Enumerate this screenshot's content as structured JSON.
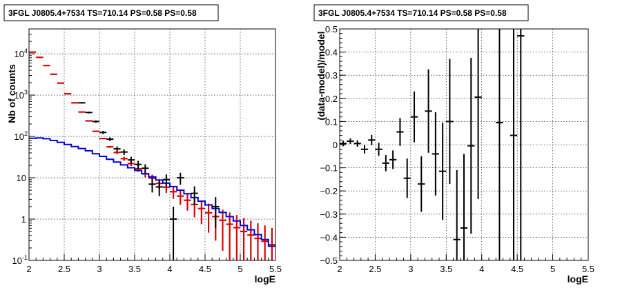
{
  "chart_data": [
    {
      "type": "line",
      "title": "3FGL J0805.4+7534 TS=710.14 PS=0.58 PS=0.58",
      "xlabel": "logE",
      "ylabel": "Nb of counts",
      "xlim": [
        2,
        5.5
      ],
      "ylim": [
        0.1,
        40000
      ],
      "yscale": "log",
      "grid": true,
      "xticks": [
        "2",
        "2.5",
        "3",
        "3.5",
        "4",
        "4.5",
        "5",
        "5.5"
      ],
      "yticks": [
        {
          "value": 0.1,
          "base": "10",
          "exp": "-1"
        },
        {
          "value": 1,
          "base": "1",
          "exp": ""
        },
        {
          "value": 10,
          "base": "10",
          "exp": ""
        },
        {
          "value": 100,
          "base": "10",
          "exp": "2"
        },
        {
          "value": 1000,
          "base": "10",
          "exp": "3"
        },
        {
          "value": 10000,
          "base": "10",
          "exp": "4"
        }
      ],
      "colors": {
        "data": "#000000",
        "model": "#dd0000",
        "source": "#0000dd"
      },
      "series": [
        {
          "kind": "model-bins",
          "x": [
            2.0,
            2.1,
            2.2,
            2.3,
            2.4,
            2.5,
            2.6,
            2.7,
            2.8,
            2.9,
            3.0,
            3.1,
            3.2,
            3.3,
            3.4,
            3.5,
            3.6,
            3.7,
            3.8,
            3.9,
            4.0,
            4.1,
            4.2,
            4.3,
            4.4,
            4.5,
            4.6,
            4.7,
            4.8,
            4.9,
            5.0,
            5.1,
            5.2,
            5.3,
            5.4
          ],
          "y": [
            11000,
            8200,
            5200,
            3200,
            1950,
            1080,
            650,
            390,
            238,
            133,
            89,
            56,
            41,
            29,
            22,
            16.5,
            12.5,
            9.8,
            7.3,
            5.9,
            4.6,
            3.6,
            2.85,
            2.25,
            1.8,
            1.42,
            1.15,
            0.93,
            0.75,
            0.62,
            0.5,
            0.41,
            0.34,
            0.29,
            0.24
          ],
          "err": [
            0,
            0,
            0,
            0,
            0,
            0,
            0,
            0,
            0,
            1.2,
            2.2,
            3.0,
            3.6,
            3.2,
            2.8,
            2.6,
            2.3,
            2.1,
            1.9,
            1.6,
            1.5,
            1.4,
            1.25,
            1.15,
            1.05,
            0.95,
            0.85,
            0.76,
            0.7,
            0.63,
            0.55,
            0.5,
            0.45,
            0.41,
            0.37
          ]
        },
        {
          "kind": "data-points",
          "x": [
            2.75,
            2.85,
            2.95,
            3.05,
            3.15,
            3.25,
            3.35,
            3.45,
            3.55,
            3.65,
            3.75,
            3.85,
            3.95,
            4.05,
            4.15,
            4.35,
            4.65
          ],
          "y": [
            650,
            380,
            230,
            125,
            86,
            50,
            42,
            27,
            21,
            17,
            7,
            6,
            9,
            1.0,
            10,
            4.2,
            2.0
          ],
          "err": [
            25,
            19,
            15,
            11,
            9.3,
            7.1,
            6.5,
            5.2,
            4.6,
            4.1,
            2.6,
            2.4,
            3.0,
            1.0,
            3.2,
            2.0,
            1.4
          ]
        },
        {
          "kind": "source-model",
          "x": [
            2.0,
            2.1,
            2.2,
            2.3,
            2.4,
            2.5,
            2.6,
            2.7,
            2.8,
            2.9,
            3.0,
            3.1,
            3.2,
            3.3,
            3.4,
            3.5,
            3.6,
            3.7,
            3.8,
            3.9,
            4.0,
            4.1,
            4.2,
            4.3,
            4.4,
            4.5,
            4.6,
            4.7,
            4.8,
            4.9,
            5.0,
            5.1,
            5.2,
            5.3,
            5.4
          ],
          "y": [
            90,
            92,
            88,
            80,
            72,
            64,
            57,
            51,
            45,
            38,
            33,
            28,
            24,
            20.5,
            17.5,
            15,
            12.5,
            10.5,
            8.8,
            7.4,
            6.1,
            5.0,
            4.1,
            3.3,
            2.7,
            2.2,
            1.8,
            1.45,
            1.15,
            0.9,
            0.7,
            0.55,
            0.42,
            0.32,
            0.22
          ]
        }
      ]
    },
    {
      "type": "scatter",
      "title": "3FGL J0805.4+7534 TS=710.14 PS=0.58 PS=0.58",
      "xlabel": "logE",
      "ylabel": "(data-model)/model",
      "xlim": [
        2,
        5.5
      ],
      "ylim": [
        -0.5,
        0.5
      ],
      "grid": true,
      "xticks": [
        "2",
        "2.5",
        "3",
        "3.5",
        "4",
        "4.5",
        "5",
        "5.5"
      ],
      "yticks": [
        "−0.5",
        "−0.4",
        "−0.3",
        "−0.2",
        "−0.1",
        "0",
        "0.1",
        "0.2",
        "0.3",
        "0.4",
        "0.5"
      ],
      "series": [
        {
          "kind": "residuals",
          "x": [
            2.05,
            2.15,
            2.25,
            2.35,
            2.45,
            2.55,
            2.65,
            2.75,
            2.85,
            2.95,
            3.05,
            3.15,
            3.25,
            3.35,
            3.45,
            3.55,
            3.65,
            3.75,
            3.85,
            3.95,
            4.25,
            4.45,
            4.55
          ],
          "y": [
            0.005,
            0.015,
            0.005,
            -0.02,
            0.02,
            -0.02,
            -0.08,
            -0.065,
            0.055,
            -0.145,
            0.12,
            -0.17,
            0.145,
            -0.04,
            -0.115,
            0.1,
            -0.41,
            -0.36,
            -0.005,
            0.205,
            0.095,
            0.04,
            0.47
          ],
          "err": [
            0.012,
            0.012,
            0.014,
            0.018,
            0.022,
            0.028,
            0.035,
            0.04,
            0.06,
            0.085,
            0.11,
            0.12,
            0.18,
            0.18,
            0.21,
            0.27,
            0.3,
            0.32,
            0.38,
            0.44,
            0.85,
            0.95,
            1.0
          ]
        }
      ]
    }
  ]
}
